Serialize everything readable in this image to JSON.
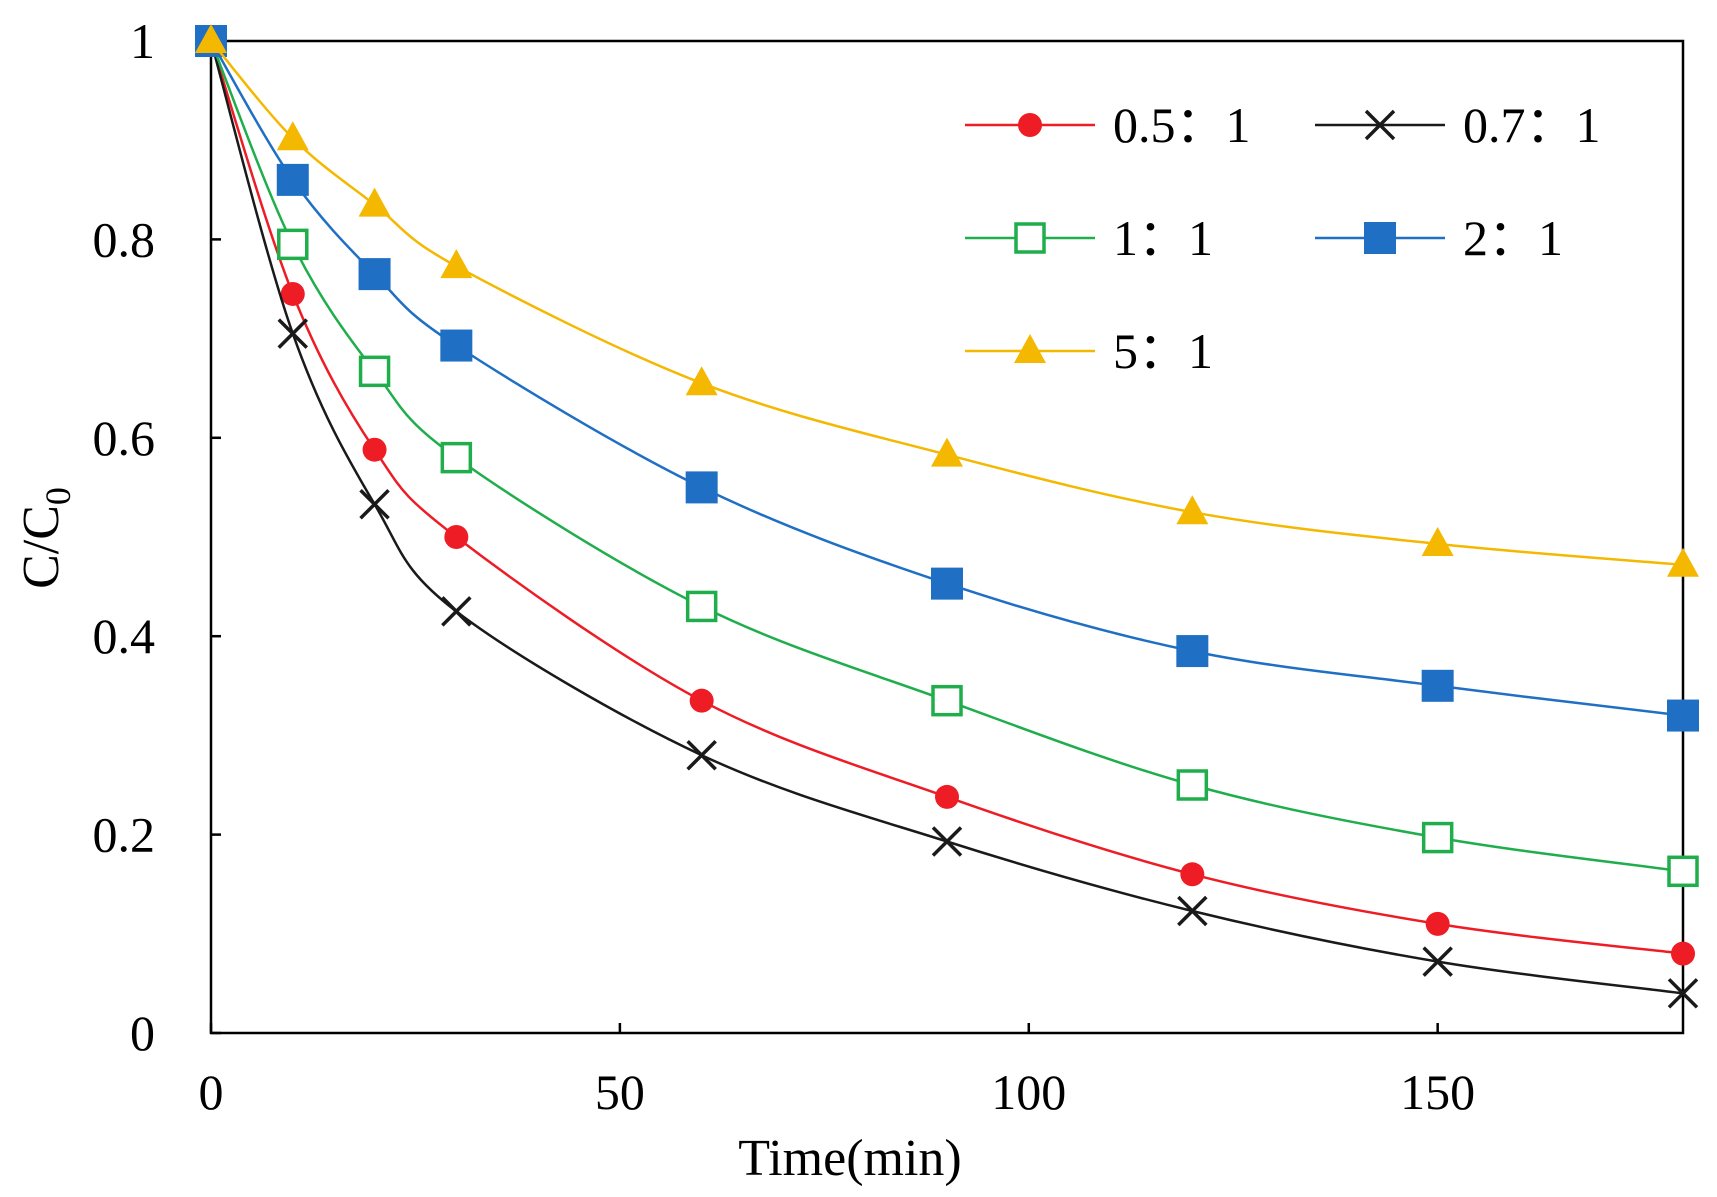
{
  "chart_data": {
    "type": "line",
    "title": "",
    "xlabel": "Time(min)",
    "ylabel": "C/C0",
    "ylabel_main": "C/C",
    "ylabel_sub": "0",
    "xlim": [
      0,
      180
    ],
    "ylim": [
      0,
      1
    ],
    "xticks": [
      0,
      50,
      100,
      150
    ],
    "xtick_labels": [
      "0",
      "50",
      "100",
      "150"
    ],
    "yticks": [
      0,
      0.2,
      0.4,
      0.6,
      0.8,
      1
    ],
    "ytick_labels": [
      "0",
      "0.2",
      "0.4",
      "0.6",
      "0.8",
      "1"
    ],
    "grid": false,
    "legend_position": "top-right",
    "x": [
      0,
      10,
      20,
      30,
      60,
      90,
      120,
      150,
      180
    ],
    "series": [
      {
        "name": "0.5：1",
        "color": "#ee1c25",
        "marker": "filled-circle",
        "values": [
          1.0,
          0.745,
          0.588,
          0.5,
          0.335,
          0.238,
          0.16,
          0.11,
          0.08
        ]
      },
      {
        "name": "0.7：1",
        "color": "#1a1a1a",
        "marker": "x",
        "values": [
          1.0,
          0.705,
          0.533,
          0.425,
          0.28,
          0.193,
          0.123,
          0.072,
          0.04
        ]
      },
      {
        "name": "1：1",
        "color": "#1fae4b",
        "marker": "hollow-square",
        "values": [
          1.0,
          0.795,
          0.667,
          0.58,
          0.43,
          0.335,
          0.25,
          0.197,
          0.163
        ]
      },
      {
        "name": "2：1",
        "color": "#1f6fc4",
        "marker": "filled-square",
        "values": [
          1.0,
          0.86,
          0.765,
          0.693,
          0.55,
          0.453,
          0.385,
          0.35,
          0.32
        ]
      },
      {
        "name": "5：1",
        "color": "#f5b800",
        "marker": "filled-triangle",
        "values": [
          1.0,
          0.902,
          0.835,
          0.773,
          0.655,
          0.583,
          0.525,
          0.493,
          0.472
        ]
      }
    ]
  }
}
